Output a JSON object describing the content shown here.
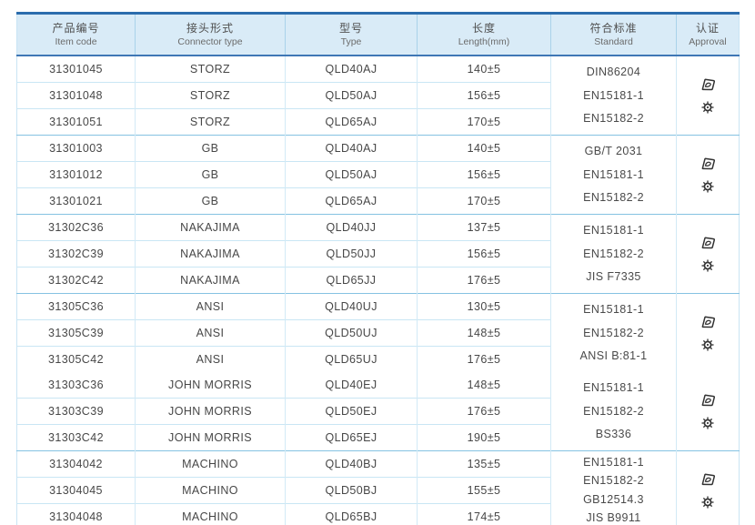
{
  "colors": {
    "accent_blue": "#2b6cad",
    "header_bg": "#d9ebf7",
    "grid_light": "#c9e6f4",
    "grid_medium": "#85c2e2",
    "text": "#474747",
    "icon": "#333333"
  },
  "table": {
    "columns": [
      {
        "zh": "产品编号",
        "en": "Item code"
      },
      {
        "zh": "接头形式",
        "en": "Connector type"
      },
      {
        "zh": "型号",
        "en": "Type"
      },
      {
        "zh": "长度",
        "en": "Length(mm)"
      },
      {
        "zh": "符合标准",
        "en": "Standard"
      },
      {
        "zh": "认证",
        "en": "Approval"
      }
    ],
    "groups": [
      {
        "divider_above": false,
        "rows": [
          {
            "item_code": "31301045",
            "connector_type": "STORZ",
            "type": "QLD40AJ",
            "length": "140±5"
          },
          {
            "item_code": "31301048",
            "connector_type": "STORZ",
            "type": "QLD50AJ",
            "length": "156±5"
          },
          {
            "item_code": "31301051",
            "connector_type": "STORZ",
            "type": "QLD65AJ",
            "length": "170±5"
          }
        ],
        "standards": [
          "DIN86204",
          "EN15181-1",
          "EN15182-2"
        ],
        "approval_icons": [
          "approval-stamp-icon",
          "wheelmark-icon"
        ]
      },
      {
        "divider_above": true,
        "rows": [
          {
            "item_code": "31301003",
            "connector_type": "GB",
            "type": "QLD40AJ",
            "length": "140±5"
          },
          {
            "item_code": "31301012",
            "connector_type": "GB",
            "type": "QLD50AJ",
            "length": "156±5"
          },
          {
            "item_code": "31301021",
            "connector_type": "GB",
            "type": "QLD65AJ",
            "length": "170±5"
          }
        ],
        "standards": [
          "GB/T 2031",
          "EN15181-1",
          "EN15182-2"
        ],
        "approval_icons": [
          "approval-stamp-icon",
          "wheelmark-icon"
        ]
      },
      {
        "divider_above": true,
        "rows": [
          {
            "item_code": "31302C36",
            "connector_type": "NAKAJIMA",
            "type": "QLD40JJ",
            "length": "137±5"
          },
          {
            "item_code": "31302C39",
            "connector_type": "NAKAJIMA",
            "type": "QLD50JJ",
            "length": "156±5"
          },
          {
            "item_code": "31302C42",
            "connector_type": "NAKAJIMA",
            "type": "QLD65JJ",
            "length": "176±5"
          }
        ],
        "standards": [
          "EN15181-1",
          "EN15182-2",
          "JIS F7335"
        ],
        "approval_icons": [
          "approval-stamp-icon",
          "wheelmark-icon"
        ]
      },
      {
        "divider_above": true,
        "rows": [
          {
            "item_code": "31305C36",
            "connector_type": "ANSI",
            "type": "QLD40UJ",
            "length": "130±5"
          },
          {
            "item_code": "31305C39",
            "connector_type": "ANSI",
            "type": "QLD50UJ",
            "length": "148±5"
          },
          {
            "item_code": "31305C42",
            "connector_type": "ANSI",
            "type": "QLD65UJ",
            "length": "176±5"
          }
        ],
        "standards": [
          "EN15181-1",
          "EN15182-2",
          "ANSI B:81-1"
        ],
        "approval_icons": [
          "approval-stamp-icon",
          "wheelmark-icon"
        ]
      },
      {
        "divider_above": false,
        "rows": [
          {
            "item_code": "31303C36",
            "connector_type": "JOHN MORRIS",
            "type": "QLD40EJ",
            "length": "148±5"
          },
          {
            "item_code": "31303C39",
            "connector_type": "JOHN MORRIS",
            "type": "QLD50EJ",
            "length": "176±5"
          },
          {
            "item_code": "31303C42",
            "connector_type": "JOHN MORRIS",
            "type": "QLD65EJ",
            "length": "190±5"
          }
        ],
        "standards": [
          "EN15181-1",
          "EN15182-2",
          "BS336"
        ],
        "approval_icons": [
          "approval-stamp-icon",
          "wheelmark-icon"
        ]
      },
      {
        "divider_above": true,
        "rows": [
          {
            "item_code": "31304042",
            "connector_type": "MACHINO",
            "type": "QLD40BJ",
            "length": "135±5"
          },
          {
            "item_code": "31304045",
            "connector_type": "MACHINO",
            "type": "QLD50BJ",
            "length": "155±5"
          },
          {
            "item_code": "31304048",
            "connector_type": "MACHINO",
            "type": "QLD65BJ",
            "length": "174±5"
          }
        ],
        "standards": [
          "EN15181-1",
          "EN15182-2",
          "GB12514.3",
          "JIS B9911"
        ],
        "approval_icons": [
          "approval-stamp-icon",
          "wheelmark-icon"
        ]
      }
    ]
  }
}
